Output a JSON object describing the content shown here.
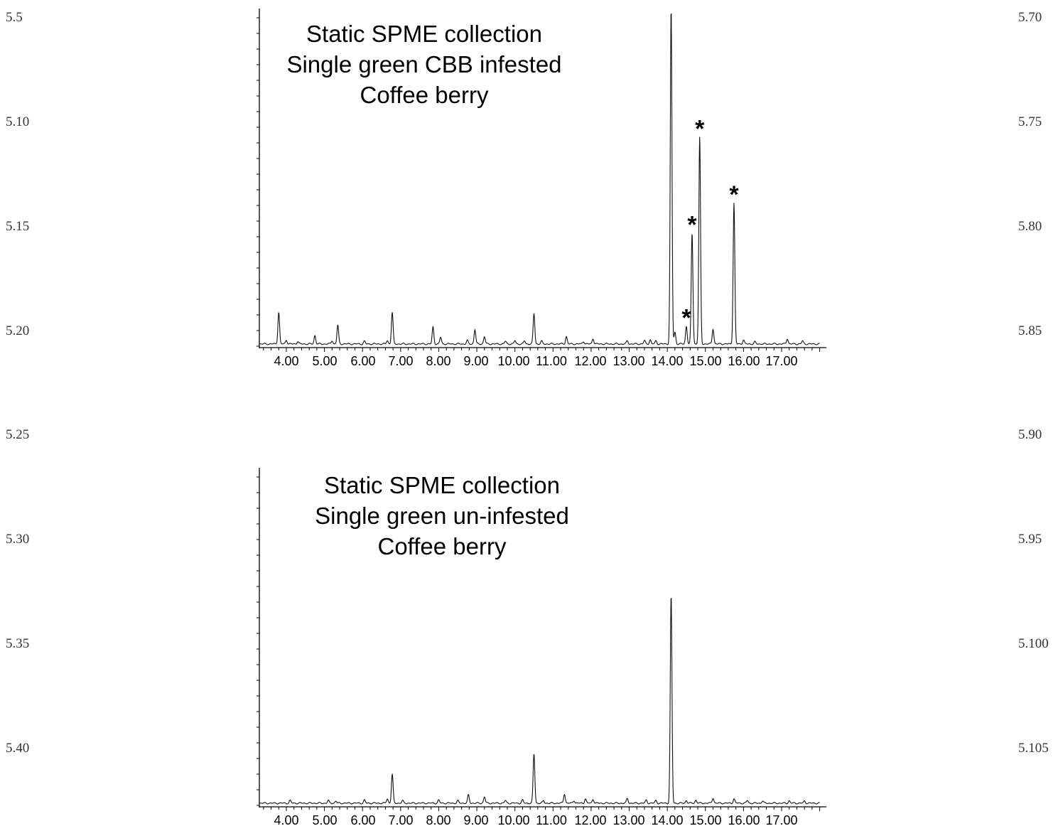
{
  "line_numbers": {
    "left": [
      "5.5",
      "5.10",
      "5.15",
      "5.20",
      "5.25",
      "5.30",
      "5.35",
      "5.40"
    ],
    "right": [
      "5.70",
      "5.75",
      "5.80",
      "5.85",
      "5.90",
      "5.95",
      "5.100",
      "5.105"
    ]
  },
  "chart_data": [
    {
      "type": "line",
      "title": [
        "Static SPME collection",
        "Single green CBB infested",
        "Coffee berry"
      ],
      "xlabel": "",
      "ylabel": "",
      "x_ticks": [
        "4.00",
        "5.00",
        "6.00",
        "7.00",
        "8.00",
        "9.00",
        "10.00",
        "11.00",
        "12.00",
        "13.00",
        "14.00",
        "15.00",
        "16.00",
        "17.00"
      ],
      "xlim": [
        3.3,
        18.0
      ],
      "ylim": [
        0,
        100
      ],
      "grid": false,
      "peaks": [
        {
          "x": 3.8,
          "y": 9.5
        },
        {
          "x": 4.0,
          "y": 1.2
        },
        {
          "x": 4.3,
          "y": 0.8
        },
        {
          "x": 4.75,
          "y": 2.5
        },
        {
          "x": 5.2,
          "y": 1.0
        },
        {
          "x": 5.35,
          "y": 5.6
        },
        {
          "x": 6.05,
          "y": 0.8
        },
        {
          "x": 6.65,
          "y": 1.0
        },
        {
          "x": 6.78,
          "y": 9.4
        },
        {
          "x": 7.85,
          "y": 5.0
        },
        {
          "x": 8.05,
          "y": 2.0
        },
        {
          "x": 8.75,
          "y": 1.0
        },
        {
          "x": 8.95,
          "y": 4.3
        },
        {
          "x": 9.2,
          "y": 2.2
        },
        {
          "x": 9.75,
          "y": 0.8
        },
        {
          "x": 10.0,
          "y": 1.0
        },
        {
          "x": 10.25,
          "y": 0.9
        },
        {
          "x": 10.5,
          "y": 9.0
        },
        {
          "x": 10.7,
          "y": 0.8
        },
        {
          "x": 11.35,
          "y": 2.2
        },
        {
          "x": 11.8,
          "y": 0.8
        },
        {
          "x": 12.05,
          "y": 1.6
        },
        {
          "x": 12.95,
          "y": 0.9
        },
        {
          "x": 13.4,
          "y": 1.0
        },
        {
          "x": 13.55,
          "y": 1.2
        },
        {
          "x": 13.7,
          "y": 0.9
        },
        {
          "x": 14.1,
          "y": 100
        },
        {
          "x": 14.2,
          "y": 3.5
        },
        {
          "x": 14.5,
          "y": 5.3
        },
        {
          "x": 14.65,
          "y": 33
        },
        {
          "x": 14.85,
          "y": 61.5
        },
        {
          "x": 15.2,
          "y": 4.5
        },
        {
          "x": 15.75,
          "y": 42
        },
        {
          "x": 16.0,
          "y": 1.2
        },
        {
          "x": 16.3,
          "y": 0.6
        },
        {
          "x": 17.15,
          "y": 1.6
        },
        {
          "x": 17.55,
          "y": 0.9
        }
      ],
      "annotations": [
        {
          "text": "*",
          "x": 14.5,
          "y": 5.3
        },
        {
          "text": "*",
          "x": 14.65,
          "y": 33
        },
        {
          "text": "*",
          "x": 14.85,
          "y": 61.5
        },
        {
          "text": "*",
          "x": 15.75,
          "y": 42
        }
      ]
    },
    {
      "type": "line",
      "title": [
        "Static SPME collection",
        "Single green un-infested",
        "Coffee berry"
      ],
      "xlabel": "",
      "ylabel": "",
      "x_ticks": [
        "4.00",
        "5.00",
        "6.00",
        "7.00",
        "8.00",
        "9.00",
        "10.00",
        "11.00",
        "12.00",
        "13.00",
        "14.00",
        "15.00",
        "16.00",
        "17.00"
      ],
      "xlim": [
        3.3,
        18.0
      ],
      "ylim": [
        0,
        100
      ],
      "grid": false,
      "peaks": [
        {
          "x": 4.1,
          "y": 0.8
        },
        {
          "x": 5.1,
          "y": 0.8
        },
        {
          "x": 5.3,
          "y": 0.6
        },
        {
          "x": 6.05,
          "y": 0.9
        },
        {
          "x": 6.65,
          "y": 1.3
        },
        {
          "x": 6.78,
          "y": 8.7
        },
        {
          "x": 7.05,
          "y": 0.7
        },
        {
          "x": 8.0,
          "y": 0.9
        },
        {
          "x": 8.5,
          "y": 0.7
        },
        {
          "x": 8.78,
          "y": 2.4
        },
        {
          "x": 9.2,
          "y": 1.9
        },
        {
          "x": 9.75,
          "y": 0.8
        },
        {
          "x": 10.2,
          "y": 0.9
        },
        {
          "x": 10.5,
          "y": 14.7
        },
        {
          "x": 10.75,
          "y": 0.7
        },
        {
          "x": 11.3,
          "y": 2.8
        },
        {
          "x": 11.55,
          "y": 0.8
        },
        {
          "x": 11.85,
          "y": 1.3
        },
        {
          "x": 12.05,
          "y": 1.2
        },
        {
          "x": 12.95,
          "y": 1.4
        },
        {
          "x": 13.45,
          "y": 0.9
        },
        {
          "x": 13.7,
          "y": 0.8
        },
        {
          "x": 14.1,
          "y": 62
        },
        {
          "x": 14.5,
          "y": 0.8
        },
        {
          "x": 14.75,
          "y": 0.9
        },
        {
          "x": 15.2,
          "y": 1.6
        },
        {
          "x": 15.75,
          "y": 1.3
        },
        {
          "x": 16.1,
          "y": 0.8
        },
        {
          "x": 16.5,
          "y": 0.7
        },
        {
          "x": 17.2,
          "y": 0.7
        },
        {
          "x": 17.6,
          "y": 0.6
        }
      ],
      "annotations": []
    }
  ]
}
